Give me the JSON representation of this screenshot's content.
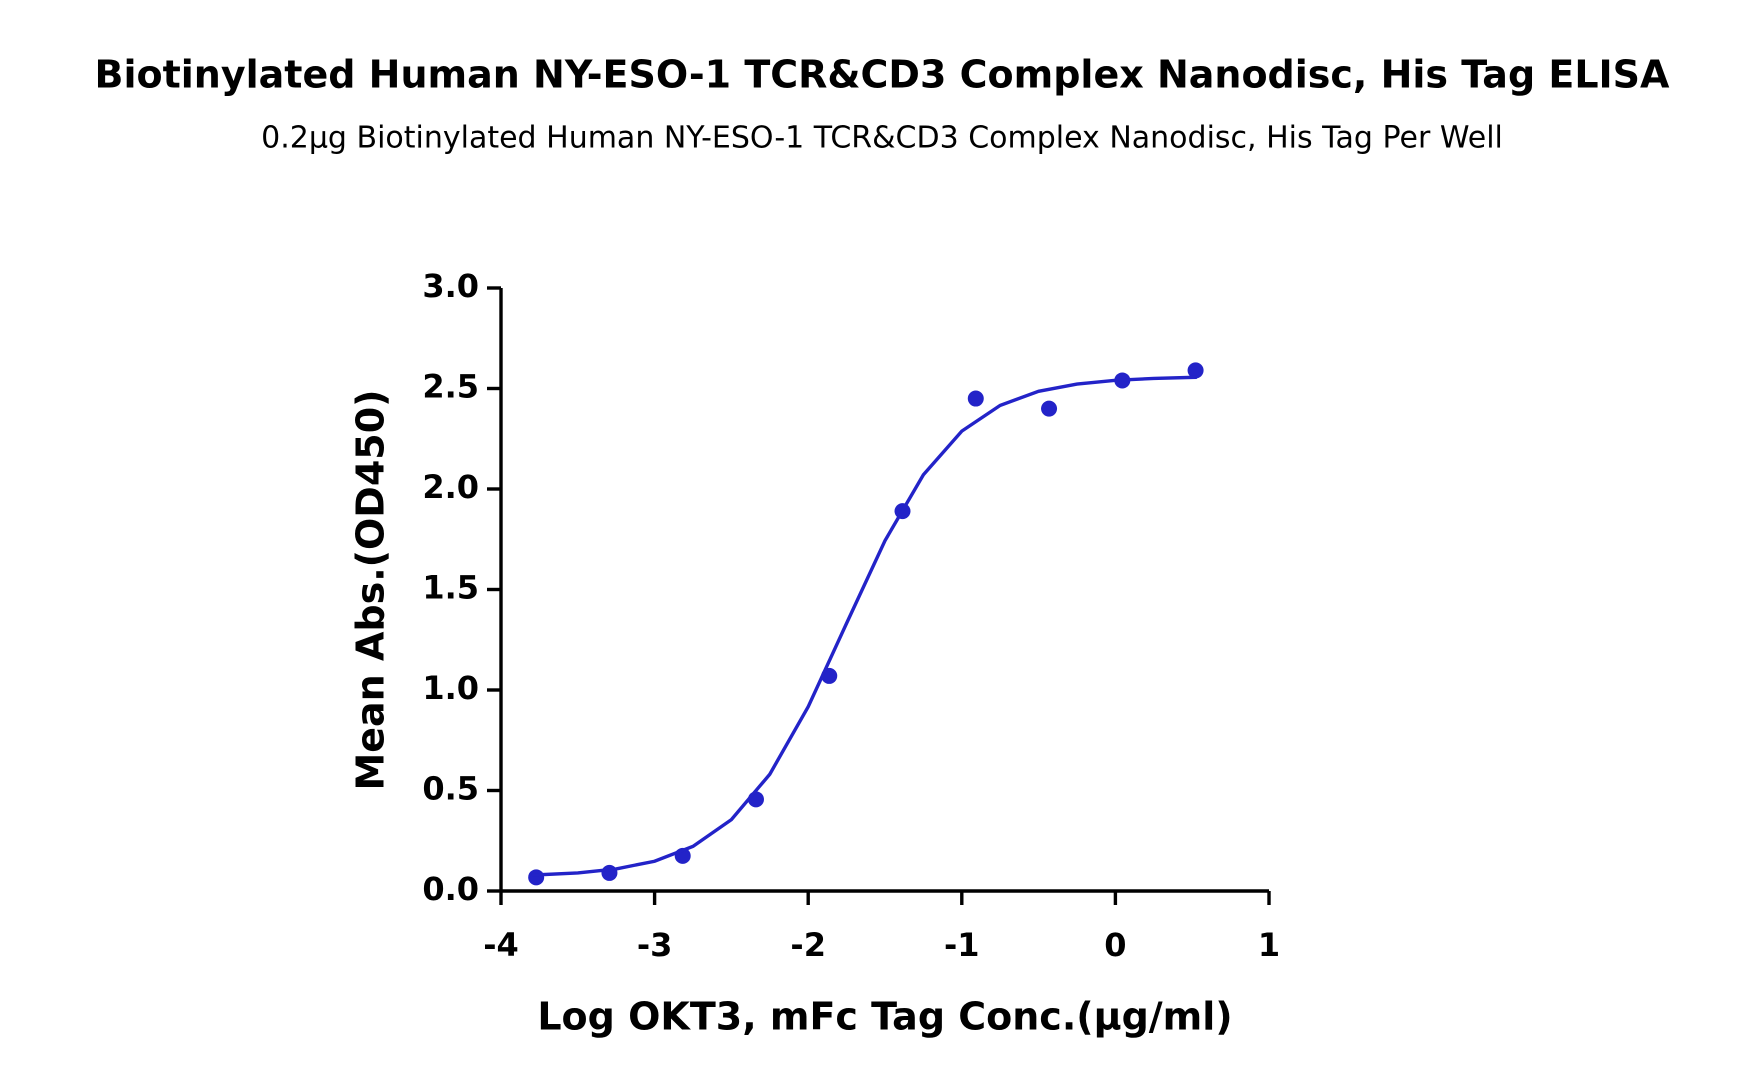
{
  "chart_data": {
    "type": "scatter",
    "title": "Biotinylated Human NY-ESO-1 TCR&CD3 Complex Nanodisc, His Tag ELISA",
    "subtitle": "0.2μg Biotinylated Human NY-ESO-1 TCR&CD3 Complex Nanodisc, His Tag Per Well",
    "x_label": "Log OKT3, mFc Tag Conc.(μg/ml)",
    "y_label": "Mean Abs.(OD450)",
    "xlim": [
      -4,
      1
    ],
    "xticks": [
      -4,
      -3,
      -2,
      -1,
      0,
      1
    ],
    "ylim": [
      0,
      3
    ],
    "yticks": [
      {
        "value": 0,
        "label": "0.0"
      },
      0.5,
      {
        "value": 1,
        "label": "1.0"
      },
      1.5,
      {
        "value": 2,
        "label": "2.0"
      },
      2.5,
      {
        "value": 3,
        "label": "3.0"
      }
    ],
    "series": [
      {
        "type": "scatter",
        "color": "#2323c8",
        "x": [
          -3.771,
          -3.294,
          -2.817,
          -2.34,
          -1.863,
          -1.386,
          -0.909,
          -0.432,
          0.045,
          0.522
        ],
        "values": [
          0.068,
          0.09,
          0.175,
          0.456,
          1.07,
          1.89,
          2.45,
          2.4,
          2.54,
          2.59
        ]
      },
      {
        "type": "line",
        "color": "#2323c8",
        "x": [
          -3.8,
          -3.5,
          -3.25,
          -3,
          -2.75,
          -2.5,
          -2.25,
          -2,
          -1.75,
          -1.5,
          -1.25,
          -1,
          -0.75,
          -0.5,
          -0.25,
          0,
          0.25,
          0.53
        ],
        "values": [
          0.079,
          0.09,
          0.11,
          0.148,
          0.222,
          0.355,
          0.581,
          0.917,
          1.332,
          1.743,
          2.071,
          2.288,
          2.416,
          2.486,
          2.522,
          2.541,
          2.55,
          2.556
        ]
      }
    ]
  }
}
